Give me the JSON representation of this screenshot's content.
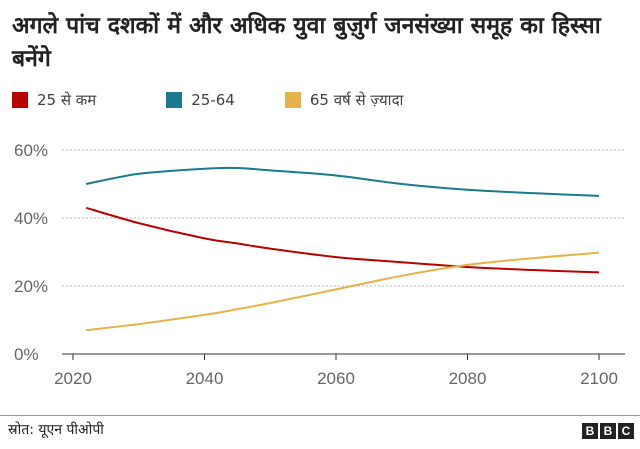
{
  "chart_data": {
    "type": "line",
    "title": "अगले पांच दशकों में और अधिक युवा बुज़ुर्ग जनसंख्या समूह का हिस्सा बनेंगे",
    "x": [
      2022,
      2030,
      2040,
      2045,
      2050,
      2060,
      2070,
      2080,
      2090,
      2100
    ],
    "series": [
      {
        "name": "25 से कम",
        "color": "#b80000",
        "values": [
          43,
          38.5,
          34,
          32.5,
          31,
          28.5,
          27,
          25.6,
          24.7,
          24
        ]
      },
      {
        "name": "25-64",
        "color": "#1a7a8e",
        "values": [
          50,
          53,
          54.5,
          54.7,
          54,
          52.5,
          50,
          48.3,
          47.3,
          46.5
        ]
      },
      {
        "name": "65 वर्ष से ज़्यादा",
        "color": "#e8b24a",
        "values": [
          7,
          8.8,
          11.5,
          13.2,
          15,
          19,
          23,
          26.2,
          28.2,
          29.8
        ]
      }
    ],
    "xticks": [
      "2020",
      "2040",
      "2060",
      "2080",
      "2100"
    ],
    "yticks": [
      "0%",
      "20%",
      "40%",
      "60%"
    ],
    "xlim": [
      2020,
      2100
    ],
    "ylim": [
      0,
      60
    ],
    "grid": true,
    "legend_placement": "top-left"
  },
  "footer": {
    "source": "स्रोत: यूएन पीओपी",
    "logo": "BBC"
  }
}
